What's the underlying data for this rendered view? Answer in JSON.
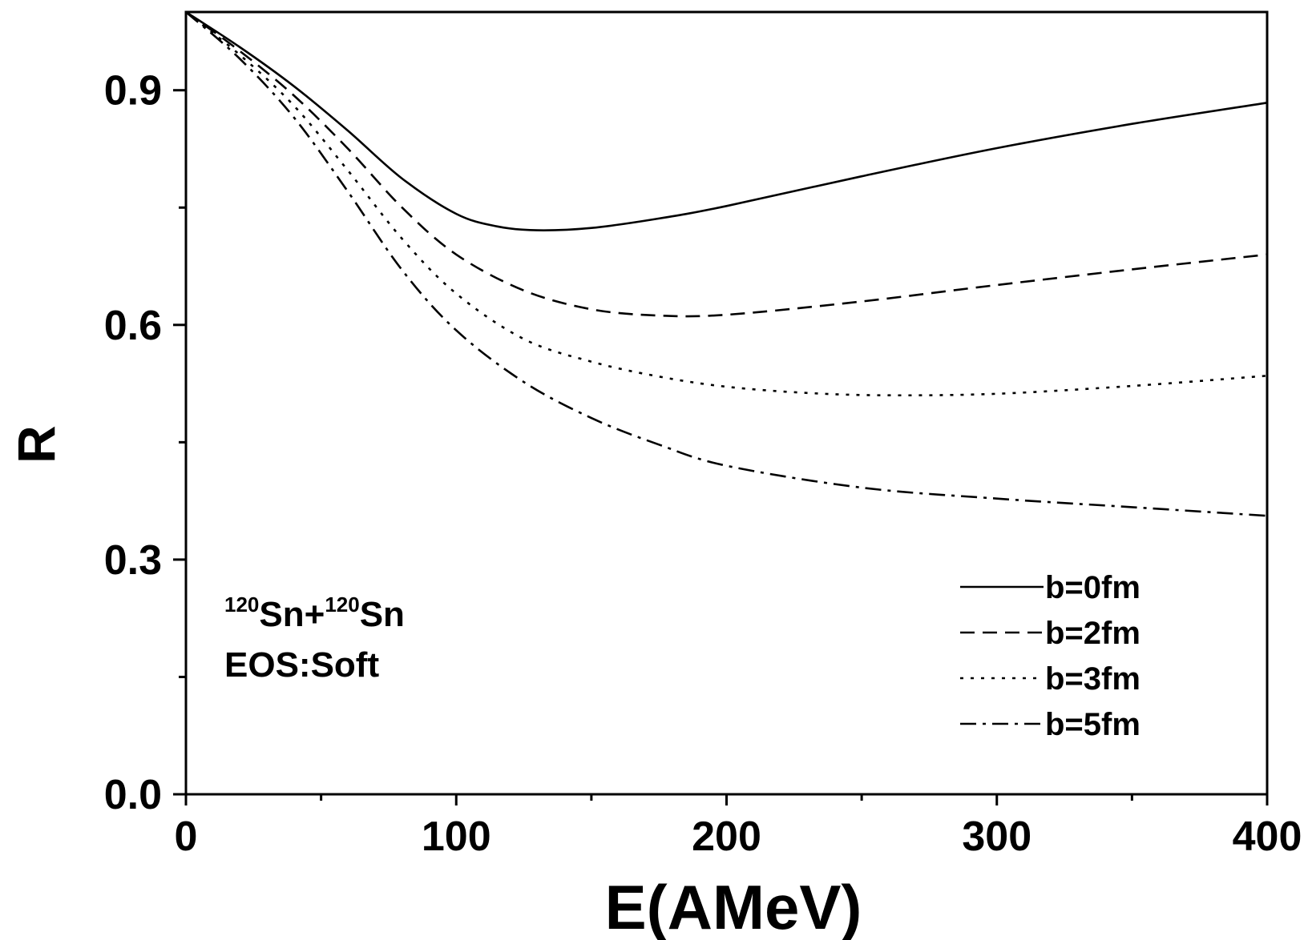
{
  "chart_data": {
    "type": "line",
    "xlabel": "E(AMeV)",
    "ylabel": "R",
    "xlim": [
      0,
      400
    ],
    "ylim": [
      0,
      1.0
    ],
    "x_ticks": [
      {
        "value": 0,
        "label": "0"
      },
      {
        "value": 100,
        "label": "100"
      },
      {
        "value": 200,
        "label": "200"
      },
      {
        "value": 300,
        "label": "300"
      },
      {
        "value": 400,
        "label": "400"
      }
    ],
    "y_ticks": [
      {
        "value": 0.0,
        "label": "0.0"
      },
      {
        "value": 0.3,
        "label": "0.3"
      },
      {
        "value": 0.6,
        "label": "0.6"
      },
      {
        "value": 0.9,
        "label": "0.9"
      }
    ],
    "grid": false,
    "legend_position": "bottom-right",
    "annotation": {
      "reaction": {
        "mass1": "120",
        "nucleus1": "Sn+",
        "mass2": "120",
        "nucleus2": "Sn"
      },
      "eos": "EOS:Soft"
    },
    "series": [
      {
        "name": "b=0fm",
        "dash": "solid",
        "x": [
          0,
          20,
          40,
          60,
          80,
          100,
          115,
          130,
          150,
          175,
          200,
          250,
          300,
          350,
          400
        ],
        "y": [
          1.0,
          0.955,
          0.905,
          0.848,
          0.787,
          0.742,
          0.726,
          0.721,
          0.724,
          0.736,
          0.752,
          0.79,
          0.826,
          0.857,
          0.884
        ]
      },
      {
        "name": "b=2fm",
        "dash": "dashed",
        "x": [
          0,
          20,
          40,
          60,
          80,
          100,
          125,
          150,
          175,
          200,
          250,
          300,
          350,
          400
        ],
        "y": [
          1.0,
          0.95,
          0.893,
          0.825,
          0.75,
          0.69,
          0.644,
          0.62,
          0.612,
          0.613,
          0.63,
          0.651,
          0.671,
          0.69
        ]
      },
      {
        "name": "b=3fm",
        "dash": "dotted",
        "x": [
          0,
          20,
          40,
          60,
          80,
          100,
          125,
          150,
          175,
          200,
          230,
          260,
          300,
          350,
          400
        ],
        "y": [
          1.0,
          0.945,
          0.88,
          0.797,
          0.71,
          0.64,
          0.582,
          0.553,
          0.534,
          0.521,
          0.513,
          0.51,
          0.512,
          0.522,
          0.535
        ]
      },
      {
        "name": "b=5fm",
        "dash": "dashdot",
        "x": [
          0,
          20,
          40,
          60,
          80,
          100,
          125,
          150,
          175,
          200,
          250,
          300,
          350,
          400
        ],
        "y": [
          1.0,
          0.94,
          0.865,
          0.77,
          0.67,
          0.593,
          0.527,
          0.481,
          0.447,
          0.42,
          0.392,
          0.378,
          0.367,
          0.356
        ]
      }
    ]
  }
}
